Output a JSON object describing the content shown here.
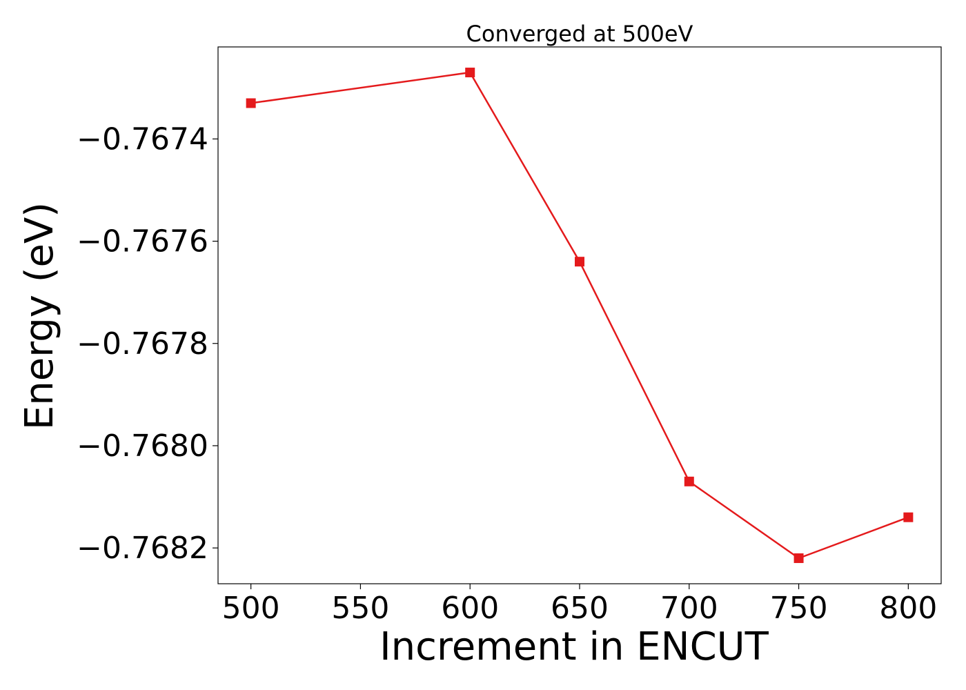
{
  "chart_data": {
    "type": "line",
    "title": "Converged at 500eV",
    "xlabel": "Increment in ENCUT",
    "ylabel": "Energy (eV)",
    "x": [
      500,
      600,
      650,
      700,
      750,
      800
    ],
    "series": [
      {
        "values": [
          -0.76733,
          -0.76727,
          -0.76764,
          -0.76807,
          -0.76822,
          -0.76814
        ],
        "color": "#e41a1c",
        "marker": "square"
      }
    ],
    "xlim": [
      485,
      815
    ],
    "ylim": [
      -0.76827,
      -0.76722
    ],
    "xticks": [
      500,
      550,
      600,
      650,
      700,
      750,
      800
    ],
    "xtick_labels": [
      "500",
      "550",
      "600",
      "650",
      "700",
      "750",
      "800"
    ],
    "yticks": [
      -0.7674,
      -0.7676,
      -0.7678,
      -0.768,
      -0.7682
    ],
    "ytick_labels": [
      "−0.7674",
      "−0.7676",
      "−0.7678",
      "−0.7680",
      "−0.7682"
    ],
    "grid": false,
    "legend": "none"
  }
}
